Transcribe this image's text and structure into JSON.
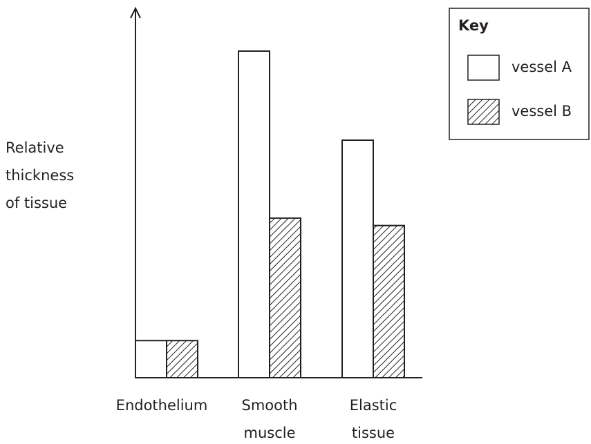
{
  "chart_data": {
    "type": "bar",
    "y_label": "Relative thickness of tissue",
    "categories": [
      "Endothelium",
      "Smooth muscle",
      "Elastic tissue"
    ],
    "series": [
      {
        "name": "vessel A",
        "color": "#ffffff",
        "pattern": "solid",
        "values": [
          10,
          88,
          64
        ]
      },
      {
        "name": "vessel B",
        "color": "#231f20",
        "pattern": "hatch",
        "values": [
          10,
          43,
          41
        ]
      }
    ],
    "ylim": [
      0,
      100
    ],
    "legend": {
      "title": "Key",
      "position": "upper right"
    }
  }
}
